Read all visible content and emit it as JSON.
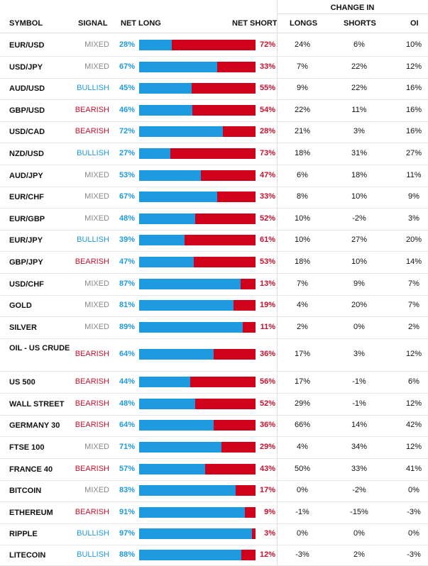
{
  "header": {
    "change_in": "CHANGE IN",
    "symbol": "SYMBOL",
    "signal": "SIGNAL",
    "net_long": "NET LONG",
    "net_short": "NET SHORT",
    "longs": "LONGS",
    "shorts": "SHORTS",
    "oi": "OI"
  },
  "colors": {
    "long": "#1e9ae0",
    "short": "#d0021b",
    "mixed": "#888888"
  },
  "rows": [
    {
      "symbol": "EUR/USD",
      "signal": "MIXED",
      "long": 28,
      "long_label": "28%",
      "short_label": "72%",
      "longs": "24%",
      "shorts": "6%",
      "oi": "10%"
    },
    {
      "symbol": "USD/JPY",
      "signal": "MIXED",
      "long": 67,
      "long_label": "67%",
      "short_label": "33%",
      "longs": "7%",
      "shorts": "22%",
      "oi": "12%"
    },
    {
      "symbol": "AUD/USD",
      "signal": "BULLISH",
      "long": 45,
      "long_label": "45%",
      "short_label": "55%",
      "longs": "9%",
      "shorts": "22%",
      "oi": "16%"
    },
    {
      "symbol": "GBP/USD",
      "signal": "BEARISH",
      "long": 46,
      "long_label": "46%",
      "short_label": "54%",
      "longs": "22%",
      "shorts": "11%",
      "oi": "16%"
    },
    {
      "symbol": "USD/CAD",
      "signal": "BEARISH",
      "long": 72,
      "long_label": "72%",
      "short_label": "28%",
      "longs": "21%",
      "shorts": "3%",
      "oi": "16%"
    },
    {
      "symbol": "NZD/USD",
      "signal": "BULLISH",
      "long": 27,
      "long_label": "27%",
      "short_label": "73%",
      "longs": "18%",
      "shorts": "31%",
      "oi": "27%"
    },
    {
      "symbol": "AUD/JPY",
      "signal": "MIXED",
      "long": 53,
      "long_label": "53%",
      "short_label": "47%",
      "longs": "6%",
      "shorts": "18%",
      "oi": "11%"
    },
    {
      "symbol": "EUR/CHF",
      "signal": "MIXED",
      "long": 67,
      "long_label": "67%",
      "short_label": "33%",
      "longs": "8%",
      "shorts": "10%",
      "oi": "9%"
    },
    {
      "symbol": "EUR/GBP",
      "signal": "MIXED",
      "long": 48,
      "long_label": "48%",
      "short_label": "52%",
      "longs": "10%",
      "shorts": "-2%",
      "oi": "3%"
    },
    {
      "symbol": "EUR/JPY",
      "signal": "BULLISH",
      "long": 39,
      "long_label": "39%",
      "short_label": "61%",
      "longs": "10%",
      "shorts": "27%",
      "oi": "20%"
    },
    {
      "symbol": "GBP/JPY",
      "signal": "BEARISH",
      "long": 47,
      "long_label": "47%",
      "short_label": "53%",
      "longs": "18%",
      "shorts": "10%",
      "oi": "14%"
    },
    {
      "symbol": "USD/CHF",
      "signal": "MIXED",
      "long": 87,
      "long_label": "87%",
      "short_label": "13%",
      "longs": "7%",
      "shorts": "9%",
      "oi": "7%"
    },
    {
      "symbol": "GOLD",
      "signal": "MIXED",
      "long": 81,
      "long_label": "81%",
      "short_label": "19%",
      "longs": "4%",
      "shorts": "20%",
      "oi": "7%"
    },
    {
      "symbol": "SILVER",
      "signal": "MIXED",
      "long": 89,
      "long_label": "89%",
      "short_label": "11%",
      "longs": "2%",
      "shorts": "0%",
      "oi": "2%"
    },
    {
      "symbol": "OIL - US CRUDE",
      "signal": "BEARISH",
      "long": 64,
      "long_label": "64%",
      "short_label": "36%",
      "longs": "17%",
      "shorts": "3%",
      "oi": "12%"
    },
    {
      "symbol": "US 500",
      "signal": "BEARISH",
      "long": 44,
      "long_label": "44%",
      "short_label": "56%",
      "longs": "17%",
      "shorts": "-1%",
      "oi": "6%"
    },
    {
      "symbol": "WALL STREET",
      "signal": "BEARISH",
      "long": 48,
      "long_label": "48%",
      "short_label": "52%",
      "longs": "29%",
      "shorts": "-1%",
      "oi": "12%"
    },
    {
      "symbol": "GERMANY 30",
      "signal": "BEARISH",
      "long": 64,
      "long_label": "64%",
      "short_label": "36%",
      "longs": "66%",
      "shorts": "14%",
      "oi": "42%"
    },
    {
      "symbol": "FTSE 100",
      "signal": "MIXED",
      "long": 71,
      "long_label": "71%",
      "short_label": "29%",
      "longs": "4%",
      "shorts": "34%",
      "oi": "12%"
    },
    {
      "symbol": "FRANCE 40",
      "signal": "BEARISH",
      "long": 57,
      "long_label": "57%",
      "short_label": "43%",
      "longs": "50%",
      "shorts": "33%",
      "oi": "41%"
    },
    {
      "symbol": "BITCOIN",
      "signal": "MIXED",
      "long": 83,
      "long_label": "83%",
      "short_label": "17%",
      "longs": "0%",
      "shorts": "-2%",
      "oi": "0%"
    },
    {
      "symbol": "ETHEREUM",
      "signal": "BEARISH",
      "long": 91,
      "long_label": "91%",
      "short_label": "9%",
      "longs": "-1%",
      "shorts": "-15%",
      "oi": "-3%"
    },
    {
      "symbol": "RIPPLE",
      "signal": "BULLISH",
      "long": 97,
      "long_label": "97%",
      "short_label": "3%",
      "longs": "0%",
      "shorts": "0%",
      "oi": "0%"
    },
    {
      "symbol": "LITECOIN",
      "signal": "BULLISH",
      "long": 88,
      "long_label": "88%",
      "short_label": "12%",
      "longs": "-3%",
      "shorts": "2%",
      "oi": "-3%"
    }
  ]
}
